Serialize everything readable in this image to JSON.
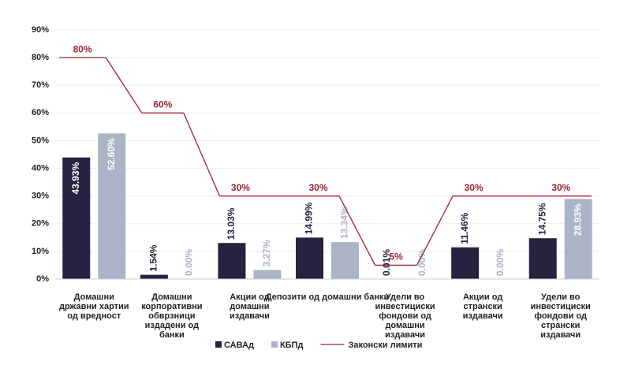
{
  "chart_data": {
    "type": "bar",
    "categories": [
      [
        "Домашни",
        "државни хартии",
        "од вредност"
      ],
      [
        "Домашни",
        "корпоративни",
        "обврзници",
        "издадени од",
        "банки"
      ],
      [
        "Акции од",
        "домашни",
        "издавачи"
      ],
      [
        "Депозити од домашни банки"
      ],
      [
        "Удели во",
        "инвестициски",
        "фондови од",
        "домашни",
        "издавачи"
      ],
      [
        "Акции од",
        "странски",
        "издавачи"
      ],
      [
        "Удели во",
        "инвестициски",
        "фондови од",
        "странски",
        "издавачи"
      ]
    ],
    "series": [
      {
        "name": "САВАд",
        "color": "#25233f",
        "values": [
          43.93,
          1.54,
          13.03,
          14.99,
          0.01,
          11.46,
          14.75
        ],
        "value_labels": [
          "43.93%",
          "1.54%",
          "13.03%",
          "14.99%",
          "0.01%",
          "11.46%",
          "14.75%"
        ]
      },
      {
        "name": "КБПд",
        "color": "#aab4c6",
        "values": [
          52.6,
          0.0,
          3.27,
          13.34,
          0.0,
          0.0,
          28.93
        ],
        "value_labels": [
          "52.60%",
          "0.00%",
          "3.27%",
          "13.34%",
          "0.00%",
          "0.00%",
          "28.93%"
        ]
      },
      {
        "name": "Законски лимити",
        "type": "line",
        "color": "#9b2335",
        "values": [
          80,
          60,
          30,
          30,
          5,
          30,
          30
        ],
        "value_labels": [
          "80%",
          "60%",
          "30%",
          "30%",
          "5%",
          "30%",
          "30%"
        ]
      }
    ],
    "ylim": [
      0,
      90
    ],
    "yticks": [
      {
        "value": 0,
        "label": "0%"
      },
      {
        "value": 10,
        "label": "10%"
      },
      {
        "value": 20,
        "label": "20%"
      },
      {
        "value": 30,
        "label": "30%"
      },
      {
        "value": 40,
        "label": "40%"
      },
      {
        "value": 50,
        "label": "50%"
      },
      {
        "value": 60,
        "label": "60%"
      },
      {
        "value": 70,
        "label": "70%"
      },
      {
        "value": 80,
        "label": "80%"
      },
      {
        "value": 90,
        "label": "90%"
      }
    ],
    "grid": true
  }
}
